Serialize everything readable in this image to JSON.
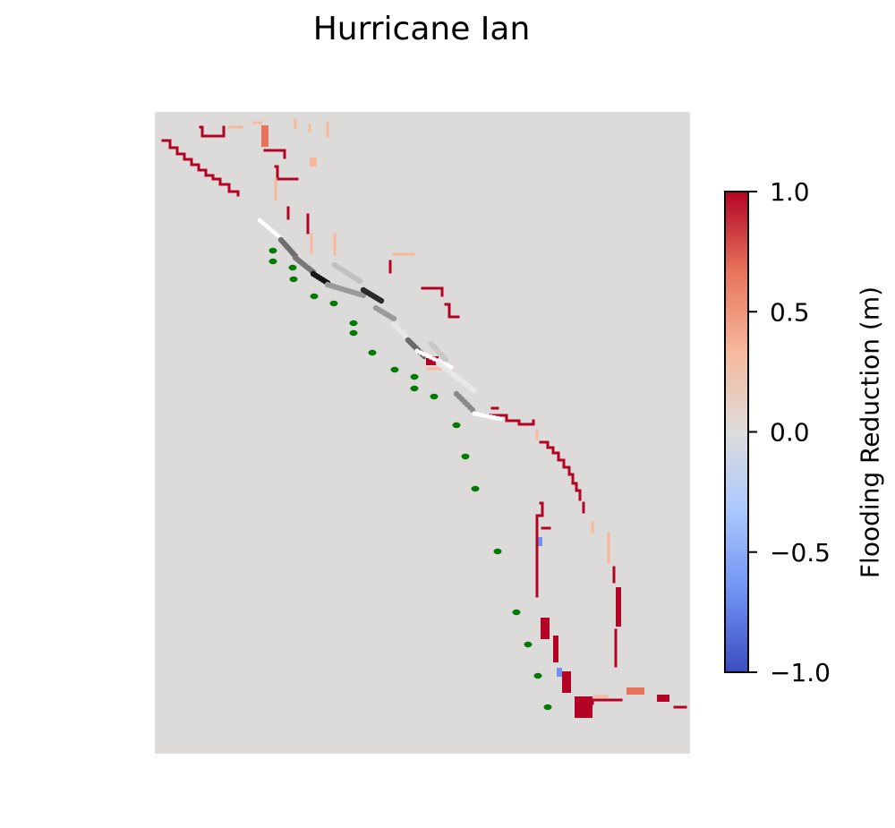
{
  "chart_data": {
    "type": "heatmap",
    "title": "Hurricane Ian",
    "colorbar": {
      "label": "Flooding Reduction (m)",
      "colormap": "coolwarm",
      "vmin": -1.0,
      "vmax": 1.0,
      "ticks": [
        1.0,
        0.5,
        0.0,
        -0.5,
        -1.0
      ],
      "tick_labels": [
        "1.0",
        "0.5",
        "0.0",
        "−0.5",
        "−1.0"
      ],
      "stops": [
        "#3b4cc0",
        "#6f92f3",
        "#aac7fd",
        "#dddddd",
        "#f7b89c",
        "#e7745b",
        "#b40426"
      ]
    },
    "background_color": "#dcdbda",
    "axes_visible": false,
    "notes": "Map of flooding reduction along a coastline; values shown mostly near +1.0 (red) with a few slightly positive (peach) and rare negative (blue) cells. Overlaid: a grayscale-shaded track of structures and a line of green markers offshore."
  }
}
